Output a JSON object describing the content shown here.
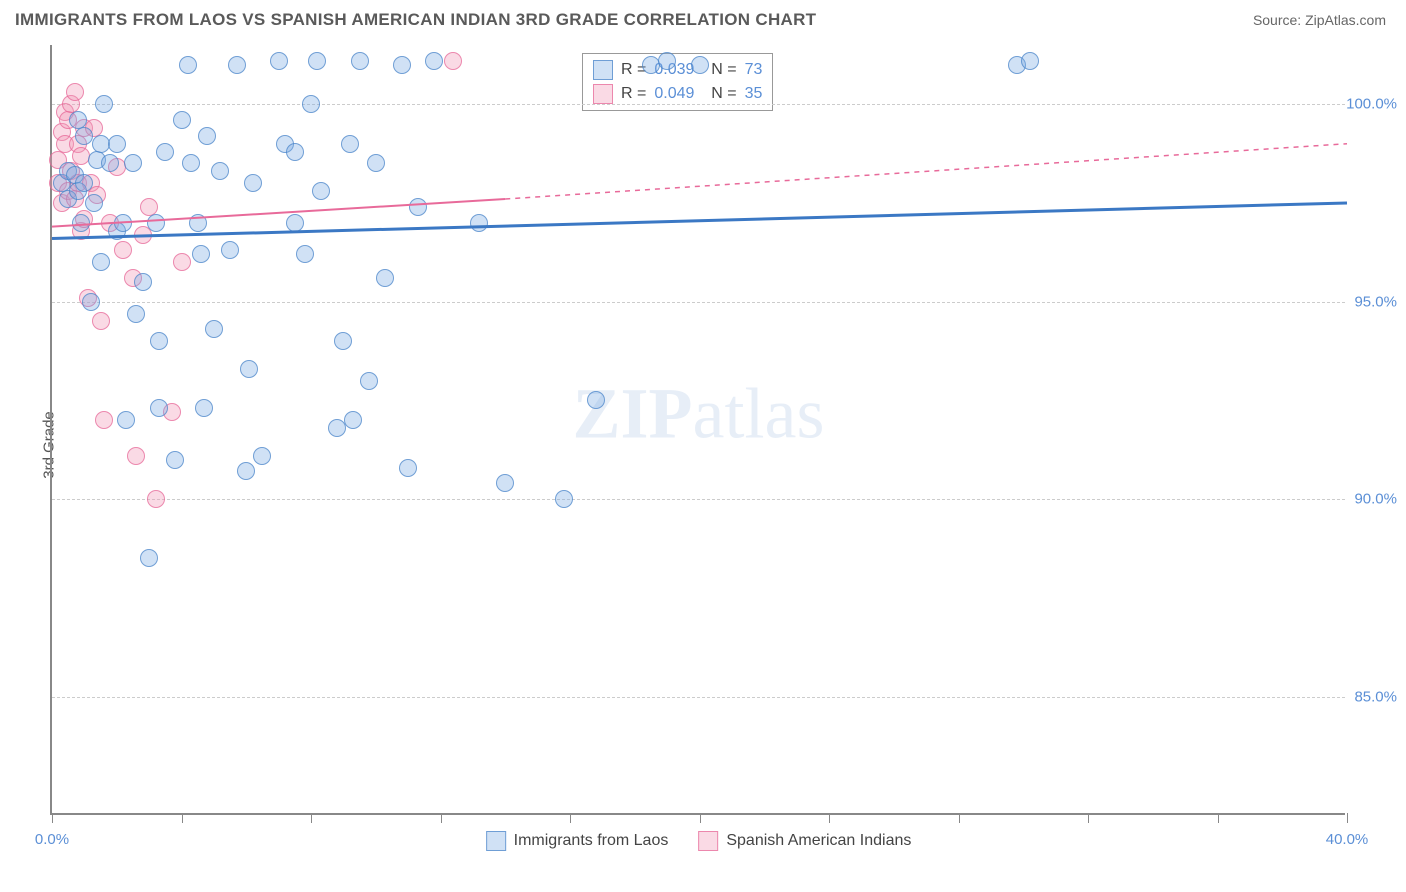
{
  "title": "IMMIGRANTS FROM LAOS VS SPANISH AMERICAN INDIAN 3RD GRADE CORRELATION CHART",
  "source": "Source: ZipAtlas.com",
  "watermark": {
    "bold": "ZIP",
    "rest": "atlas"
  },
  "chart": {
    "type": "scatter",
    "background_color": "#ffffff",
    "grid_color": "#cccccc",
    "xlim": [
      0,
      40
    ],
    "ylim": [
      82,
      101.5
    ],
    "x_ticks": [
      0,
      4,
      8,
      12,
      16,
      20,
      24,
      28,
      32,
      36,
      40
    ],
    "x_tick_labels": {
      "0": "0.0%",
      "40": "40.0%"
    },
    "y_gridlines": [
      85,
      90,
      95,
      100
    ],
    "y_labels": [
      "85.0%",
      "90.0%",
      "95.0%",
      "100.0%"
    ],
    "y_axis_title": "3rd Grade",
    "marker_size": 18,
    "series_blue": {
      "name": "Immigrants from Laos",
      "color_fill": "rgba(121,170,225,0.35)",
      "color_stroke": "rgba(70,130,200,0.7)",
      "R": "0.039",
      "N": "73",
      "trend": {
        "x1": 0,
        "y1": 96.6,
        "x2": 40,
        "y2": 97.5,
        "color": "#3b78c4",
        "width": 3,
        "dash": "none"
      },
      "points": [
        [
          0.3,
          98.0
        ],
        [
          0.5,
          98.3
        ],
        [
          0.5,
          97.6
        ],
        [
          0.7,
          98.2
        ],
        [
          0.8,
          97.8
        ],
        [
          0.8,
          99.6
        ],
        [
          0.9,
          97.0
        ],
        [
          1.0,
          98.0
        ],
        [
          1.0,
          99.2
        ],
        [
          1.2,
          95.0
        ],
        [
          1.3,
          97.5
        ],
        [
          1.4,
          98.6
        ],
        [
          1.5,
          96.0
        ],
        [
          1.5,
          99.0
        ],
        [
          1.6,
          100.0
        ],
        [
          1.8,
          98.5
        ],
        [
          2.0,
          99.0
        ],
        [
          2.0,
          96.8
        ],
        [
          2.2,
          97.0
        ],
        [
          2.3,
          92.0
        ],
        [
          2.5,
          98.5
        ],
        [
          2.6,
          94.7
        ],
        [
          2.8,
          95.5
        ],
        [
          3.0,
          88.5
        ],
        [
          3.2,
          97.0
        ],
        [
          3.3,
          94.0
        ],
        [
          3.3,
          92.3
        ],
        [
          3.5,
          98.8
        ],
        [
          3.8,
          91.0
        ],
        [
          4.0,
          99.6
        ],
        [
          4.2,
          101.0
        ],
        [
          4.3,
          98.5
        ],
        [
          4.5,
          97.0
        ],
        [
          4.6,
          96.2
        ],
        [
          4.7,
          92.3
        ],
        [
          4.8,
          99.2
        ],
        [
          5.0,
          94.3
        ],
        [
          5.2,
          98.3
        ],
        [
          5.5,
          96.3
        ],
        [
          5.7,
          101.0
        ],
        [
          6.0,
          90.7
        ],
        [
          6.1,
          93.3
        ],
        [
          6.2,
          98.0
        ],
        [
          6.5,
          91.1
        ],
        [
          7.0,
          101.1
        ],
        [
          7.2,
          99.0
        ],
        [
          7.5,
          98.8
        ],
        [
          7.5,
          97.0
        ],
        [
          7.8,
          96.2
        ],
        [
          8.0,
          100.0
        ],
        [
          8.2,
          101.1
        ],
        [
          8.3,
          97.8
        ],
        [
          8.8,
          91.8
        ],
        [
          9.0,
          94.0
        ],
        [
          9.2,
          99.0
        ],
        [
          9.3,
          92.0
        ],
        [
          9.5,
          101.1
        ],
        [
          9.8,
          93.0
        ],
        [
          10.0,
          98.5
        ],
        [
          10.3,
          95.6
        ],
        [
          10.8,
          101.0
        ],
        [
          11.0,
          90.8
        ],
        [
          11.3,
          97.4
        ],
        [
          11.8,
          101.1
        ],
        [
          13.2,
          97.0
        ],
        [
          14.0,
          90.4
        ],
        [
          15.8,
          90.0
        ],
        [
          16.8,
          92.5
        ],
        [
          18.5,
          101.0
        ],
        [
          19.0,
          101.1
        ],
        [
          20.0,
          101.0
        ],
        [
          29.8,
          101.0
        ],
        [
          30.2,
          101.1
        ]
      ]
    },
    "series_pink": {
      "name": "Spanish American Indians",
      "color_fill": "rgba(240,150,180,0.35)",
      "color_stroke": "rgba(230,100,150,0.7)",
      "R": "0.049",
      "N": "35",
      "trend": {
        "x1": 0,
        "y1": 96.9,
        "x2": 14,
        "y2": 97.6,
        "x3": 40,
        "y3": 99.0,
        "color": "#e86a9a",
        "width": 2
      },
      "points": [
        [
          0.2,
          98.0
        ],
        [
          0.2,
          98.6
        ],
        [
          0.3,
          99.3
        ],
        [
          0.3,
          97.5
        ],
        [
          0.4,
          99.8
        ],
        [
          0.4,
          99.0
        ],
        [
          0.5,
          99.6
        ],
        [
          0.5,
          97.8
        ],
        [
          0.6,
          98.3
        ],
        [
          0.6,
          100.0
        ],
        [
          0.7,
          100.3
        ],
        [
          0.7,
          97.6
        ],
        [
          0.8,
          99.0
        ],
        [
          0.8,
          98.0
        ],
        [
          0.9,
          98.7
        ],
        [
          0.9,
          96.8
        ],
        [
          1.0,
          97.1
        ],
        [
          1.0,
          99.4
        ],
        [
          1.1,
          95.1
        ],
        [
          1.2,
          98.0
        ],
        [
          1.3,
          99.4
        ],
        [
          1.4,
          97.7
        ],
        [
          1.5,
          94.5
        ],
        [
          1.6,
          92.0
        ],
        [
          1.8,
          97.0
        ],
        [
          2.0,
          98.4
        ],
        [
          2.2,
          96.3
        ],
        [
          2.5,
          95.6
        ],
        [
          2.6,
          91.1
        ],
        [
          2.8,
          96.7
        ],
        [
          3.0,
          97.4
        ],
        [
          3.2,
          90.0
        ],
        [
          3.7,
          92.2
        ],
        [
          4.0,
          96.0
        ],
        [
          12.4,
          101.1
        ]
      ]
    }
  }
}
